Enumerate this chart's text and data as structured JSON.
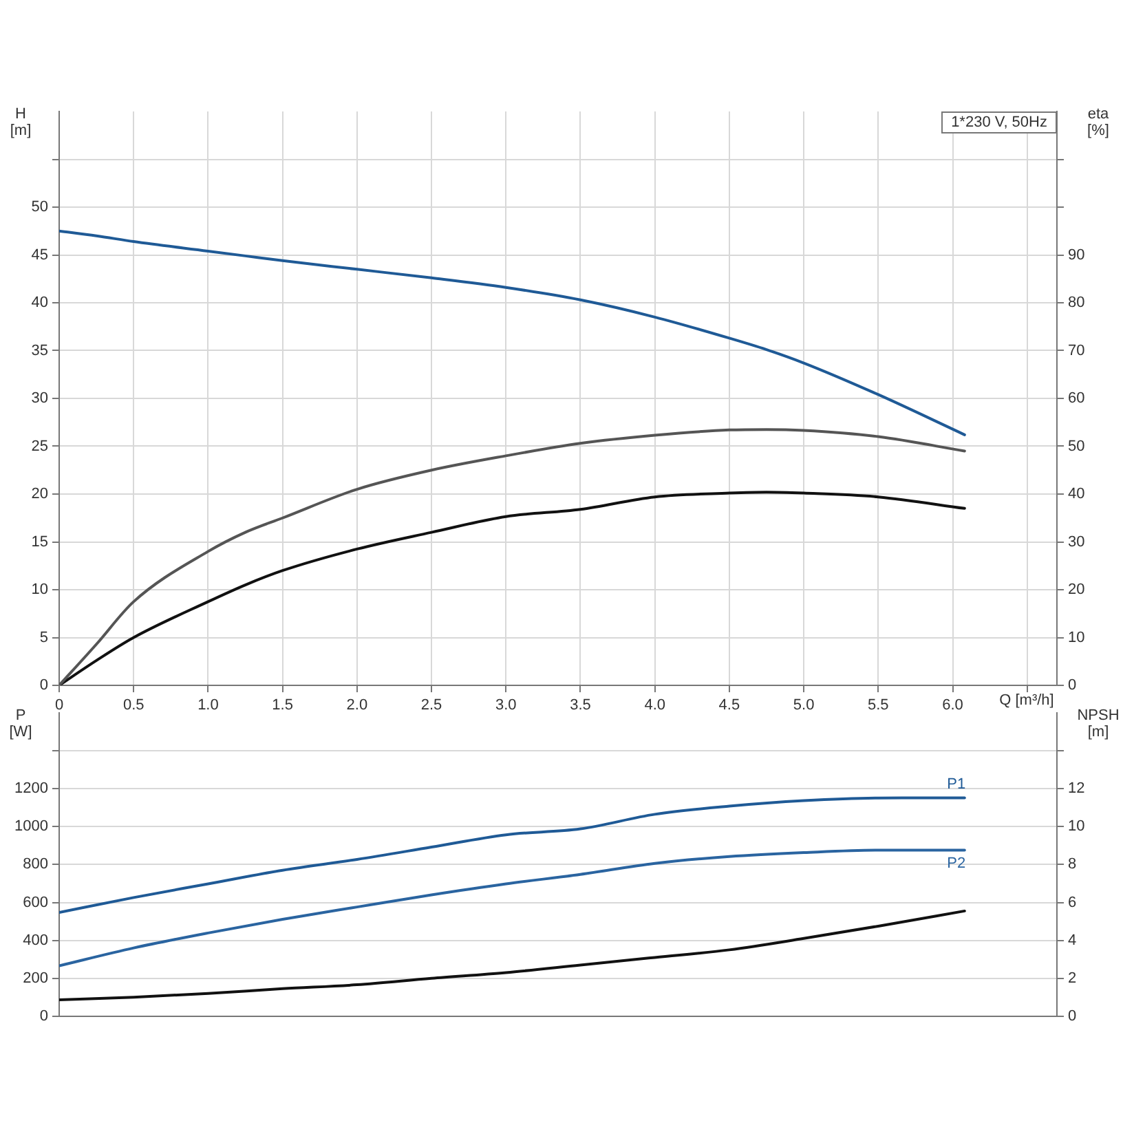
{
  "chart_data": [
    {
      "type": "line",
      "xlabel": "Q [m³/h]",
      "ylabel": "H [m]",
      "y2label": "eta [%]",
      "annotations": [
        "1*230 V, 50Hz"
      ],
      "x": [
        0,
        0.25,
        0.5,
        1.0,
        1.25,
        1.5,
        2.0,
        2.5,
        3.0,
        3.5,
        4.0,
        4.5,
        4.75,
        5.0,
        5.5,
        6.08
      ],
      "xlim": [
        0,
        6.7
      ],
      "xticks": [
        0,
        {
          "value": 0.5,
          "label": "0.5"
        },
        {
          "value": 1,
          "label": "1.0"
        },
        {
          "value": 1.5,
          "label": "1.5"
        },
        {
          "value": 2,
          "label": "2.0"
        },
        {
          "value": 2.5,
          "label": "2.5"
        },
        {
          "value": 3,
          "label": "3.0"
        },
        {
          "value": 3.5,
          "label": "3.5"
        },
        {
          "value": 4,
          "label": "4.0"
        },
        {
          "value": 4.5,
          "label": "4.5"
        },
        {
          "value": 5,
          "label": "5.0"
        },
        {
          "value": 5.5,
          "label": "5.5"
        },
        {
          "value": 6,
          "label": "6.0"
        },
        {
          "value": 6.5,
          "label": null
        }
      ],
      "ylim": [
        0,
        60
      ],
      "yticks": [
        0,
        5,
        10,
        15,
        20,
        25,
        30,
        35,
        40,
        45,
        50,
        {
          "value": 55,
          "label": null
        }
      ],
      "y2lim": [
        0,
        120
      ],
      "y2ticks": [
        0,
        10,
        20,
        30,
        40,
        50,
        60,
        70,
        80,
        90,
        {
          "value": 100,
          "label": null
        },
        {
          "value": 110,
          "label": null
        }
      ],
      "grid": true,
      "legend": false,
      "marker": "none",
      "line_style": "solid",
      "series": [
        {
          "color": "#1f5a96",
          "values": [
            47.5,
            47.0,
            46.4,
            45.4,
            44.9,
            44.4,
            43.5,
            42.6,
            41.6,
            40.3,
            38.5,
            36.3,
            35.1,
            33.7,
            30.4,
            26.2
          ]
        },
        {
          "color": "#555555",
          "axis": "y2",
          "values": [
            0,
            8.6,
            17.5,
            28,
            32,
            35,
            41,
            45,
            48,
            50.6,
            52.3,
            53.4,
            53.5,
            53.3,
            52,
            49
          ]
        },
        {
          "color": "#111111",
          "axis": "y2",
          "values": [
            0,
            5.2,
            10,
            17.5,
            21,
            24,
            28.5,
            32,
            35.3,
            36.8,
            39.4,
            40.2,
            40.4,
            40.2,
            39.4,
            37
          ]
        }
      ]
    },
    {
      "type": "line",
      "ylabel": "P [W]",
      "y2label": "NPSH [m]",
      "tick_labels": "y",
      "x": [
        0,
        0.5,
        1.0,
        1.5,
        2.0,
        2.5,
        3.0,
        3.5,
        4.0,
        4.5,
        5.0,
        5.5,
        6.08
      ],
      "xlim": [
        0,
        6.7
      ],
      "ylim": [
        0,
        1600
      ],
      "yticks": [
        0,
        200,
        400,
        600,
        800,
        1000,
        1200,
        {
          "value": 1400,
          "label": null
        }
      ],
      "y2lim": [
        0,
        16
      ],
      "y2ticks": [
        0,
        2,
        4,
        6,
        8,
        10,
        12,
        {
          "value": 14,
          "label": null
        }
      ],
      "grid": true,
      "legend": false,
      "marker": "none",
      "line_style": "solid",
      "series": [
        {
          "name": "P1",
          "color": "#1f5a96",
          "values": [
            547,
            626,
            698,
            770,
            827,
            892,
            957,
            988,
            1065,
            1108,
            1137,
            1151,
            1152
          ]
        },
        {
          "name": "P2",
          "color": "#2a64a0",
          "values": [
            266,
            360,
            439,
            511,
            576,
            640,
            698,
            748,
            806,
            842,
            863,
            876,
            876
          ]
        },
        {
          "color": "#111111",
          "axis": "y2",
          "values": [
            0.86,
            1.0,
            1.2,
            1.45,
            1.66,
            2.0,
            2.3,
            2.7,
            3.1,
            3.5,
            4.1,
            4.75,
            5.55
          ]
        }
      ]
    }
  ]
}
